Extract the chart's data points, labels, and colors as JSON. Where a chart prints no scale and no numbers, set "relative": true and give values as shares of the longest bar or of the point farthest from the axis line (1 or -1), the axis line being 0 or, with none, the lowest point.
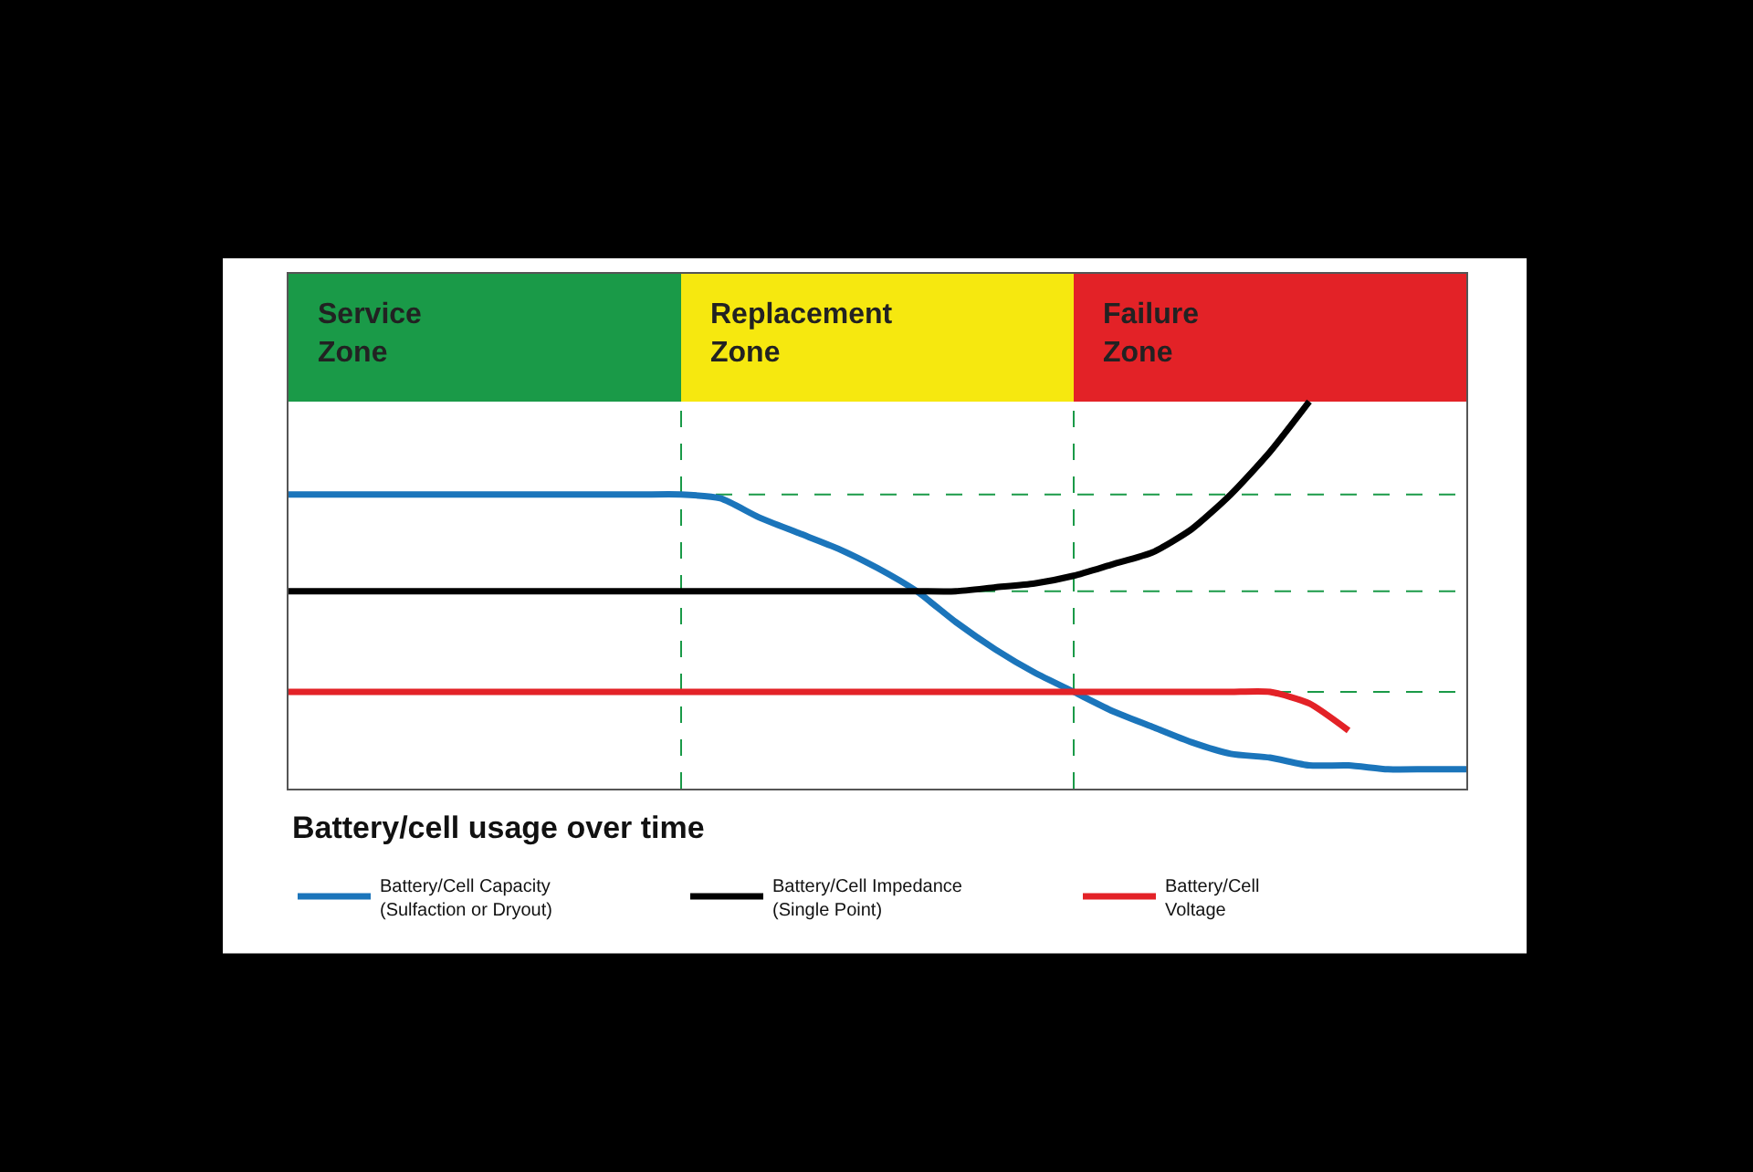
{
  "chart_data": {
    "type": "line",
    "relative": true,
    "xlabel": "Battery/cell usage over time",
    "categories": [
      null,
      null,
      null,
      null,
      null,
      null,
      null,
      null,
      null,
      null,
      null,
      null,
      null,
      null,
      null,
      null,
      null,
      null,
      null,
      null,
      null,
      null,
      null,
      null,
      null,
      null,
      null,
      null,
      null,
      null,
      null
    ],
    "series": [
      {
        "name": "Battery/Cell Capacity\n(Sulfaction or Dryout)",
        "color": "#1b75bb",
        "values": [
          0.76,
          0.76,
          0.76,
          0.76,
          0.76,
          0.76,
          0.76,
          0.76,
          0.76,
          0.76,
          0.76,
          0.75,
          0.7,
          0.66,
          0.62,
          0.57,
          0.51,
          0.43,
          0.36,
          0.3,
          0.25,
          0.2,
          0.16,
          0.12,
          0.09,
          0.08,
          0.06,
          0.06,
          0.05,
          0.05,
          0.05
        ]
      },
      {
        "name": "Battery/Cell Impedance\n(Single Point)",
        "color": "#000000",
        "values": [
          0.51,
          0.51,
          0.51,
          0.51,
          0.51,
          0.51,
          0.51,
          0.51,
          0.51,
          0.51,
          0.51,
          0.51,
          0.51,
          0.51,
          0.51,
          0.51,
          0.51,
          0.51,
          0.52,
          0.53,
          0.55,
          0.58,
          0.61,
          0.67,
          0.76,
          0.87,
          1.0,
          null,
          null,
          null,
          null
        ]
      },
      {
        "name": "Battery/Cell\nVoltage",
        "color": "#e32227",
        "values": [
          0.25,
          0.25,
          0.25,
          0.25,
          0.25,
          0.25,
          0.25,
          0.25,
          0.25,
          0.25,
          0.25,
          0.25,
          0.25,
          0.25,
          0.25,
          0.25,
          0.25,
          0.25,
          0.25,
          0.25,
          0.25,
          0.25,
          0.25,
          0.25,
          0.25,
          0.25,
          0.22,
          0.15,
          null,
          null,
          null
        ]
      }
    ],
    "annotations": [
      "Service\nZone",
      "Replacement\nZone",
      "Failure\nZone"
    ],
    "ref_lines": [
      {
        "axis": "y",
        "value": 0.76,
        "color": "#1a9a48",
        "line_style": "dashed"
      },
      {
        "axis": "y",
        "value": 0.51,
        "color": "#1a9a48",
        "line_style": "dashed"
      },
      {
        "axis": "y",
        "value": 0.25,
        "color": "#1a9a48",
        "line_style": "dashed"
      }
    ],
    "legend": "bottom",
    "tick_labels": false,
    "grid": false,
    "marker": "none",
    "line_style": "solid"
  }
}
